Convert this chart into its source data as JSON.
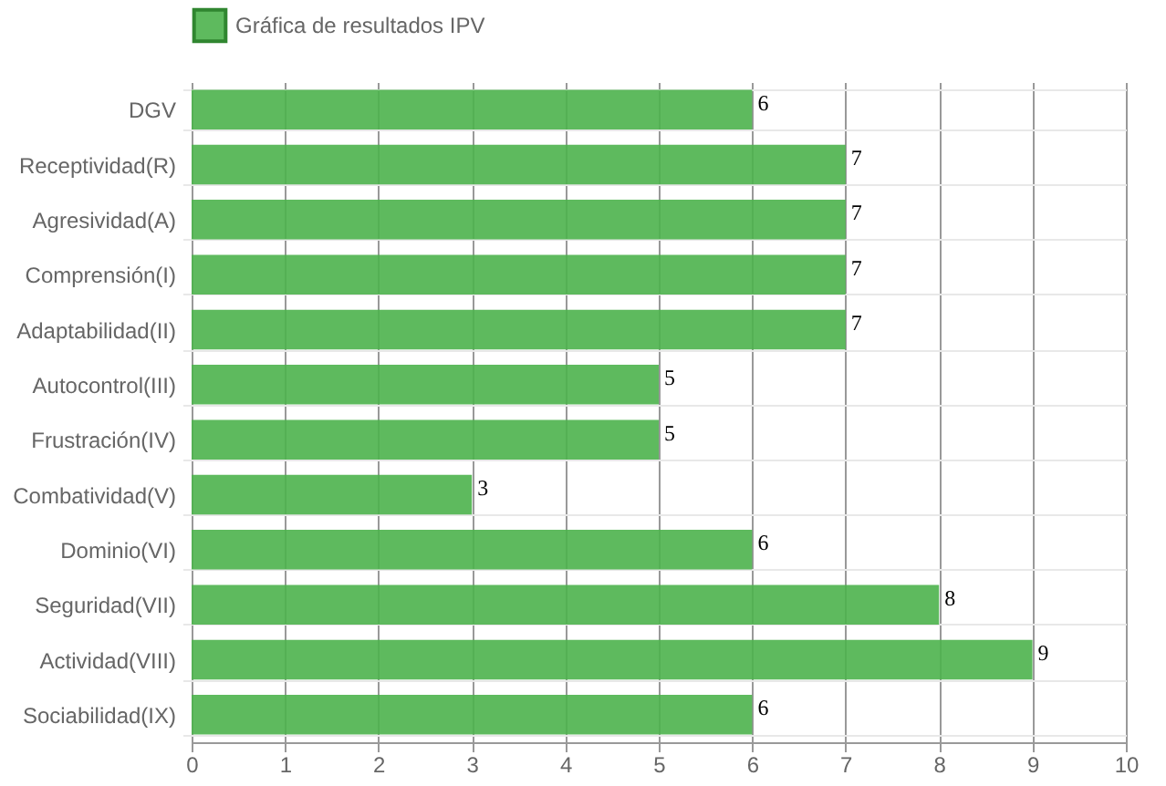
{
  "chart_data": {
    "type": "bar",
    "orientation": "horizontal",
    "categories": [
      "DGV",
      "Receptividad(R)",
      "Agresividad(A)",
      "Comprensión(I)",
      "Adaptabilidad(II)",
      "Autocontrol(III)",
      "Frustración(IV)",
      "Combatividad(V)",
      "Dominio(VI)",
      "Seguridad(VII)",
      "Actividad(VIII)",
      "Sociabilidad(IX)"
    ],
    "series": [
      {
        "name": "Gráfica de resultados IPV",
        "color": "#4db34d",
        "values": [
          6,
          7,
          7,
          7,
          7,
          5,
          5,
          3,
          6,
          8,
          9,
          6
        ]
      }
    ],
    "xlim": [
      0,
      10
    ],
    "xticks": [
      0,
      1,
      2,
      3,
      4,
      5,
      6,
      7,
      8,
      9,
      10
    ],
    "grid": true,
    "legend": "top",
    "data_labels": true
  }
}
